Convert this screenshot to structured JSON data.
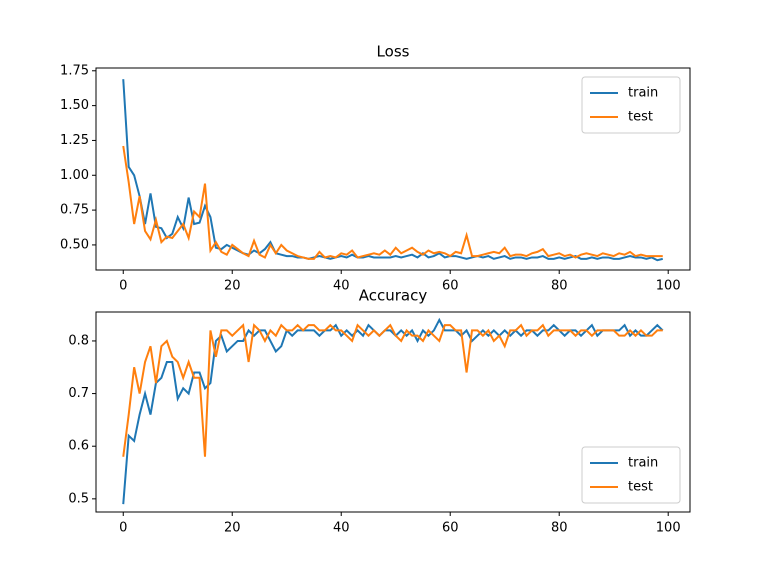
{
  "chart_data": [
    {
      "type": "line",
      "title": "Loss",
      "legend": "upper right",
      "x": [
        0,
        1,
        2,
        3,
        4,
        5,
        6,
        7,
        8,
        9,
        10,
        11,
        12,
        13,
        14,
        15,
        16,
        17,
        18,
        19,
        20,
        21,
        22,
        23,
        24,
        25,
        26,
        27,
        28,
        29,
        30,
        31,
        32,
        33,
        34,
        35,
        36,
        37,
        38,
        39,
        40,
        41,
        42,
        43,
        44,
        45,
        46,
        47,
        48,
        49,
        50,
        51,
        52,
        53,
        54,
        55,
        56,
        57,
        58,
        59,
        60,
        61,
        62,
        63,
        64,
        65,
        66,
        67,
        68,
        69,
        70,
        71,
        72,
        73,
        74,
        75,
        76,
        77,
        78,
        79,
        80,
        81,
        82,
        83,
        84,
        85,
        86,
        87,
        88,
        89,
        90,
        91,
        92,
        93,
        94,
        95,
        96,
        97,
        98,
        99
      ],
      "xlim": [
        -5,
        104
      ],
      "xticks": [
        0,
        20,
        40,
        60,
        80,
        100
      ],
      "ylim": [
        0.32,
        1.77
      ],
      "yticks": [
        {
          "value": 0.5,
          "label": "0.50"
        },
        0.75,
        {
          "value": 1,
          "label": "1.00"
        },
        1.25,
        {
          "value": 1.5,
          "label": "1.50"
        },
        1.75
      ],
      "series": [
        {
          "name": "train",
          "color": "#1f77b4",
          "values": [
            1.69,
            1.06,
            1.0,
            0.85,
            0.65,
            0.87,
            0.63,
            0.62,
            0.55,
            0.58,
            0.7,
            0.62,
            0.84,
            0.65,
            0.66,
            0.78,
            0.7,
            0.48,
            0.47,
            0.5,
            0.48,
            0.46,
            0.44,
            0.43,
            0.46,
            0.44,
            0.47,
            0.52,
            0.44,
            0.43,
            0.42,
            0.42,
            0.41,
            0.41,
            0.4,
            0.41,
            0.42,
            0.41,
            0.4,
            0.41,
            0.42,
            0.41,
            0.43,
            0.41,
            0.41,
            0.42,
            0.41,
            0.41,
            0.41,
            0.41,
            0.42,
            0.41,
            0.42,
            0.43,
            0.41,
            0.44,
            0.41,
            0.42,
            0.44,
            0.41,
            0.42,
            0.42,
            0.41,
            0.4,
            0.41,
            0.42,
            0.41,
            0.42,
            0.4,
            0.41,
            0.42,
            0.4,
            0.41,
            0.41,
            0.4,
            0.41,
            0.41,
            0.42,
            0.4,
            0.4,
            0.41,
            0.4,
            0.41,
            0.42,
            0.4,
            0.4,
            0.41,
            0.4,
            0.41,
            0.41,
            0.4,
            0.4,
            0.41,
            0.42,
            0.41,
            0.41,
            0.4,
            0.41,
            0.39,
            0.4
          ]
        },
        {
          "name": "test",
          "color": "#ff7f0e",
          "values": [
            1.21,
            0.95,
            0.65,
            0.85,
            0.6,
            0.54,
            0.68,
            0.52,
            0.56,
            0.55,
            0.6,
            0.65,
            0.55,
            0.74,
            0.7,
            0.94,
            0.46,
            0.52,
            0.45,
            0.43,
            0.5,
            0.47,
            0.44,
            0.42,
            0.53,
            0.43,
            0.41,
            0.5,
            0.44,
            0.5,
            0.46,
            0.44,
            0.42,
            0.41,
            0.4,
            0.4,
            0.45,
            0.41,
            0.42,
            0.41,
            0.44,
            0.43,
            0.46,
            0.41,
            0.42,
            0.43,
            0.44,
            0.43,
            0.46,
            0.43,
            0.48,
            0.44,
            0.46,
            0.48,
            0.45,
            0.43,
            0.46,
            0.44,
            0.45,
            0.44,
            0.42,
            0.45,
            0.44,
            0.57,
            0.42,
            0.42,
            0.43,
            0.44,
            0.45,
            0.44,
            0.48,
            0.42,
            0.43,
            0.43,
            0.42,
            0.44,
            0.45,
            0.47,
            0.42,
            0.43,
            0.44,
            0.42,
            0.43,
            0.41,
            0.43,
            0.44,
            0.43,
            0.42,
            0.44,
            0.43,
            0.42,
            0.44,
            0.43,
            0.45,
            0.42,
            0.43,
            0.42,
            0.42,
            0.42,
            0.42
          ]
        }
      ]
    },
    {
      "type": "line",
      "title": "Accuracy",
      "legend": "lower right",
      "x": [
        0,
        1,
        2,
        3,
        4,
        5,
        6,
        7,
        8,
        9,
        10,
        11,
        12,
        13,
        14,
        15,
        16,
        17,
        18,
        19,
        20,
        21,
        22,
        23,
        24,
        25,
        26,
        27,
        28,
        29,
        30,
        31,
        32,
        33,
        34,
        35,
        36,
        37,
        38,
        39,
        40,
        41,
        42,
        43,
        44,
        45,
        46,
        47,
        48,
        49,
        50,
        51,
        52,
        53,
        54,
        55,
        56,
        57,
        58,
        59,
        60,
        61,
        62,
        63,
        64,
        65,
        66,
        67,
        68,
        69,
        70,
        71,
        72,
        73,
        74,
        75,
        76,
        77,
        78,
        79,
        80,
        81,
        82,
        83,
        84,
        85,
        86,
        87,
        88,
        89,
        90,
        91,
        92,
        93,
        94,
        95,
        96,
        97,
        98,
        99
      ],
      "xlim": [
        -5,
        104
      ],
      "xticks": [
        0,
        20,
        40,
        60,
        80,
        100
      ],
      "ylim": [
        0.475,
        0.855
      ],
      "yticks": [
        0.5,
        0.6,
        0.7,
        0.8
      ],
      "series": [
        {
          "name": "train",
          "color": "#1f77b4",
          "values": [
            0.49,
            0.62,
            0.61,
            0.66,
            0.7,
            0.66,
            0.72,
            0.73,
            0.76,
            0.76,
            0.69,
            0.71,
            0.7,
            0.74,
            0.74,
            0.71,
            0.72,
            0.8,
            0.81,
            0.78,
            0.79,
            0.8,
            0.8,
            0.82,
            0.81,
            0.82,
            0.82,
            0.8,
            0.78,
            0.79,
            0.82,
            0.81,
            0.82,
            0.82,
            0.82,
            0.82,
            0.81,
            0.82,
            0.82,
            0.83,
            0.81,
            0.82,
            0.81,
            0.82,
            0.81,
            0.83,
            0.82,
            0.81,
            0.82,
            0.82,
            0.81,
            0.82,
            0.81,
            0.82,
            0.8,
            0.82,
            0.81,
            0.82,
            0.84,
            0.82,
            0.82,
            0.82,
            0.81,
            0.82,
            0.8,
            0.81,
            0.82,
            0.81,
            0.82,
            0.81,
            0.82,
            0.81,
            0.82,
            0.81,
            0.82,
            0.82,
            0.81,
            0.82,
            0.82,
            0.83,
            0.82,
            0.81,
            0.82,
            0.82,
            0.81,
            0.82,
            0.83,
            0.81,
            0.82,
            0.82,
            0.82,
            0.82,
            0.83,
            0.81,
            0.82,
            0.81,
            0.81,
            0.82,
            0.83,
            0.82
          ]
        },
        {
          "name": "test",
          "color": "#ff7f0e",
          "values": [
            0.58,
            0.66,
            0.75,
            0.7,
            0.76,
            0.79,
            0.72,
            0.79,
            0.8,
            0.77,
            0.76,
            0.73,
            0.76,
            0.73,
            0.73,
            0.58,
            0.82,
            0.77,
            0.82,
            0.82,
            0.81,
            0.82,
            0.83,
            0.76,
            0.83,
            0.82,
            0.8,
            0.82,
            0.81,
            0.83,
            0.82,
            0.82,
            0.83,
            0.82,
            0.83,
            0.83,
            0.82,
            0.82,
            0.83,
            0.82,
            0.82,
            0.81,
            0.8,
            0.83,
            0.82,
            0.81,
            0.82,
            0.81,
            0.82,
            0.83,
            0.81,
            0.8,
            0.82,
            0.81,
            0.81,
            0.8,
            0.82,
            0.81,
            0.8,
            0.83,
            0.83,
            0.82,
            0.82,
            0.74,
            0.82,
            0.82,
            0.81,
            0.82,
            0.8,
            0.81,
            0.79,
            0.82,
            0.82,
            0.83,
            0.81,
            0.82,
            0.82,
            0.83,
            0.81,
            0.82,
            0.82,
            0.82,
            0.82,
            0.81,
            0.82,
            0.82,
            0.81,
            0.82,
            0.82,
            0.82,
            0.82,
            0.81,
            0.81,
            0.82,
            0.81,
            0.82,
            0.81,
            0.81,
            0.82,
            0.82
          ]
        }
      ]
    }
  ]
}
